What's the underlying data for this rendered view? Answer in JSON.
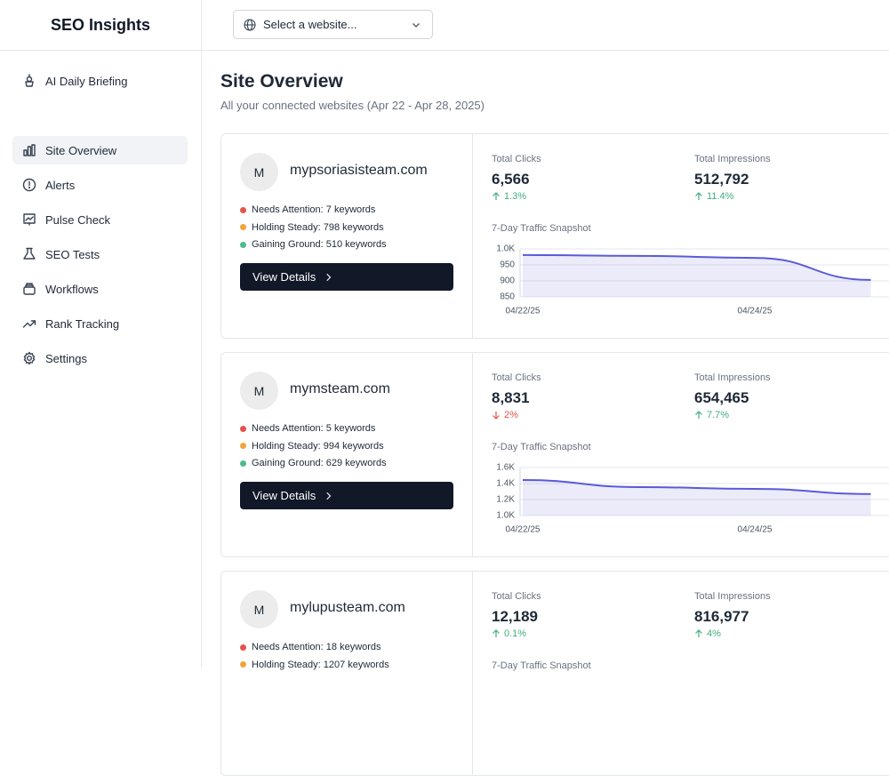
{
  "app": {
    "title": "SEO Insights"
  },
  "site_select": {
    "placeholder": "Select a website..."
  },
  "nav": [
    {
      "label": "AI Daily Briefing"
    },
    {
      "label": "Site Overview",
      "active": true
    },
    {
      "label": "Alerts"
    },
    {
      "label": "Pulse Check"
    },
    {
      "label": "SEO Tests"
    },
    {
      "label": "Workflows"
    },
    {
      "label": "Rank Tracking"
    },
    {
      "label": "Settings"
    }
  ],
  "page": {
    "title": "Site Overview",
    "subtitle": "All your connected websites (Apr 22 - Apr 28, 2025)"
  },
  "sites": [
    {
      "initial": "M",
      "name": "mypsoriasisteam.com",
      "keywords": [
        {
          "label": "Needs Attention: 7 keywords",
          "color": "#e5534b"
        },
        {
          "label": "Holding Steady: 798 keywords",
          "color": "#f0a53a"
        },
        {
          "label": "Gaining Ground: 510 keywords",
          "color": "#4cbb8c"
        }
      ],
      "button": "View Details",
      "metrics": [
        {
          "label": "Total Clicks",
          "value": "6,566",
          "change": "1.3%",
          "direction": "up"
        },
        {
          "label": "Total Impressions",
          "value": "512,792",
          "change": "11.4%",
          "direction": "up"
        }
      ],
      "chart": {
        "type": "area",
        "title": "7-Day Traffic Snapshot",
        "x": [
          "04/22/25",
          null,
          "04/24/25",
          null
        ],
        "values": [
          981,
          978,
          972,
          903
        ],
        "ylim": [
          850,
          1000
        ],
        "yticks": [
          850,
          900,
          950,
          {
            "value": 1000,
            "label": "1.0K"
          }
        ],
        "color": "#5a5ad8",
        "grid": true
      }
    },
    {
      "initial": "M",
      "name": "mymsteam.com",
      "keywords": [
        {
          "label": "Needs Attention: 5 keywords",
          "color": "#e5534b"
        },
        {
          "label": "Holding Steady: 994 keywords",
          "color": "#f0a53a"
        },
        {
          "label": "Gaining Ground: 629 keywords",
          "color": "#4cbb8c"
        }
      ],
      "button": "View Details",
      "metrics": [
        {
          "label": "Total Clicks",
          "value": "8,831",
          "change": "2%",
          "direction": "down"
        },
        {
          "label": "Total Impressions",
          "value": "654,465",
          "change": "7.7%",
          "direction": "up"
        }
      ],
      "chart": {
        "type": "area",
        "title": "7-Day Traffic Snapshot",
        "x": [
          "04/22/25",
          null,
          "04/24/25",
          null
        ],
        "values": [
          1444,
          1356,
          1333,
          1270
        ],
        "ylim": [
          1000,
          1600
        ],
        "yticks": [
          {
            "value": 1000,
            "label": "1.0K"
          },
          {
            "value": 1200,
            "label": "1.2K"
          },
          {
            "value": 1400,
            "label": "1.4K"
          },
          {
            "value": 1600,
            "label": "1.6K"
          }
        ],
        "color": "#5a5ad8",
        "grid": true
      }
    },
    {
      "initial": "M",
      "name": "mylupusteam.com",
      "keywords": [
        {
          "label": "Needs Attention: 18 keywords",
          "color": "#e5534b"
        },
        {
          "label": "Holding Steady: 1207 keywords",
          "color": "#f0a53a"
        }
      ],
      "metrics": [
        {
          "label": "Total Clicks",
          "value": "12,189",
          "change": "0.1%",
          "direction": "up"
        },
        {
          "label": "Total Impressions",
          "value": "816,977",
          "change": "4%",
          "direction": "up"
        }
      ],
      "chart": {
        "title": "7-Day Traffic Snapshot"
      }
    }
  ]
}
